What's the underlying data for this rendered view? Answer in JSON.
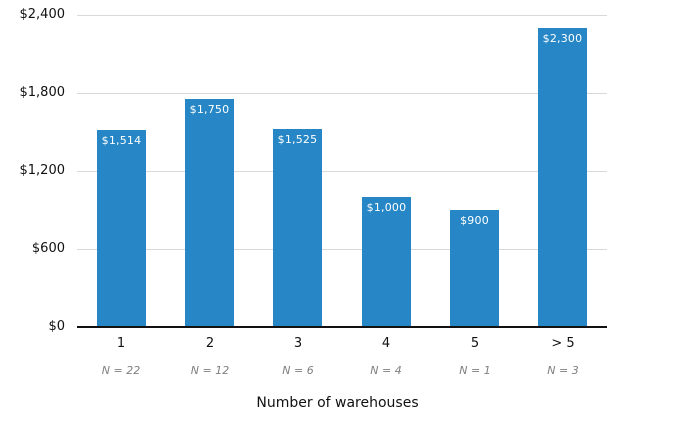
{
  "chart_data": {
    "type": "bar",
    "categories": [
      "1",
      "2",
      "3",
      "4",
      "5",
      "> 5"
    ],
    "values": [
      1514,
      1750,
      1525,
      1000,
      900,
      2300
    ],
    "value_labels": [
      "$1,514",
      "$1,750",
      "$1,525",
      "$1,000",
      "$900",
      "$2,300"
    ],
    "n_labels": [
      "N = 22",
      "N = 12",
      "N = 6",
      "N = 4",
      "N = 1",
      "N = 3"
    ],
    "title": "",
    "xlabel": "Number of warehouses",
    "ylabel": "",
    "ylim": [
      0,
      2400
    ],
    "ytick_values": [
      0,
      600,
      1200,
      1800,
      2400
    ],
    "ytick_labels": [
      "$0",
      "$600",
      "$1,200",
      "$1,800",
      "$2,400"
    ],
    "grid": "horizontal",
    "legend": "none",
    "colors": {
      "bar": "#2787c6",
      "value_label": "#ffffff",
      "gridline": "#d9d9d9",
      "axis_line": "#111111",
      "tick_label": "#111111",
      "n_label": "#7f7f7f",
      "background": "#ffffff"
    }
  }
}
